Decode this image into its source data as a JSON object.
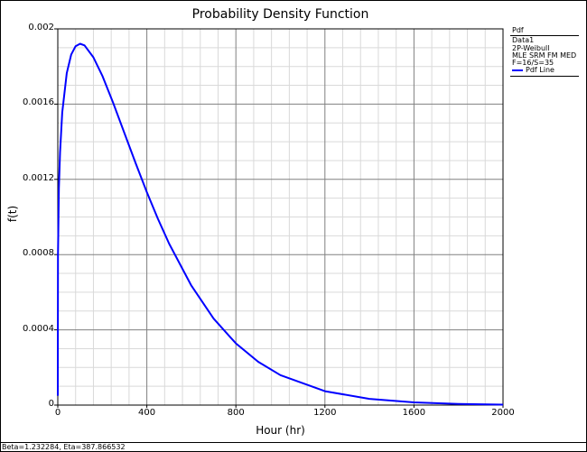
{
  "chart_data": {
    "type": "line",
    "title": "Probability Density Function",
    "xlabel": "Hour (hr)",
    "ylabel": "f(t)",
    "xlim": [
      0,
      2000
    ],
    "ylim": [
      0,
      0.002
    ],
    "x_ticks": [
      "0",
      "400",
      "800",
      "1200",
      "1600",
      "2000"
    ],
    "y_ticks": [
      "0",
      "0.0004",
      "0.0008",
      "0.0012",
      "0.0016",
      "0.002"
    ],
    "grid": true,
    "legend_position": "right",
    "series": [
      {
        "name": "Pdf Line",
        "color": "#0000ff",
        "x": [
          0,
          1,
          5,
          10,
          20,
          40,
          60,
          80,
          100,
          120,
          160,
          200,
          250,
          300,
          350,
          400,
          450,
          500,
          600,
          700,
          800,
          900,
          1000,
          1200,
          1400,
          1600,
          1800,
          2000
        ],
        "y": [
          5e-05,
          0.000795,
          0.001151,
          0.001343,
          0.001555,
          0.001764,
          0.001863,
          0.001908,
          0.001921,
          0.001912,
          0.001849,
          0.001751,
          0.001603,
          0.001444,
          0.001285,
          0.001132,
          0.00099,
          0.000858,
          0.000635,
          0.00046,
          0.000328,
          0.00023,
          0.000159,
          7.4e-05,
          3.31e-05,
          1.43e-05,
          6e-06,
          2.5e-06
        ]
      }
    ],
    "parameters": {
      "beta": 1.232284,
      "eta": 387.866532
    }
  },
  "legend": {
    "header": "Pdf",
    "lines": [
      "Data1",
      "2P-Weibull",
      "MLE SRM FM MED",
      "F=16/S=35"
    ],
    "series_label": "Pdf Line"
  },
  "footer": "Beta=1.232284, Eta=387.866532"
}
